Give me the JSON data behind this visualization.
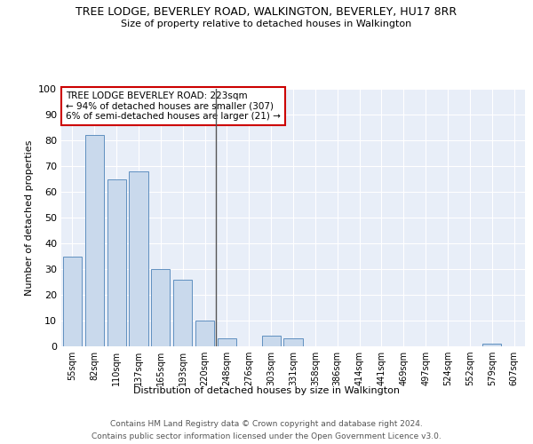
{
  "title": "TREE LODGE, BEVERLEY ROAD, WALKINGTON, BEVERLEY, HU17 8RR",
  "subtitle": "Size of property relative to detached houses in Walkington",
  "xlabel": "Distribution of detached houses by size in Walkington",
  "ylabel": "Number of detached properties",
  "categories": [
    "55sqm",
    "82sqm",
    "110sqm",
    "137sqm",
    "165sqm",
    "193sqm",
    "220sqm",
    "248sqm",
    "276sqm",
    "303sqm",
    "331sqm",
    "358sqm",
    "386sqm",
    "414sqm",
    "441sqm",
    "469sqm",
    "497sqm",
    "524sqm",
    "552sqm",
    "579sqm",
    "607sqm"
  ],
  "values": [
    35,
    82,
    65,
    68,
    30,
    26,
    10,
    3,
    0,
    4,
    3,
    0,
    0,
    0,
    0,
    0,
    0,
    0,
    0,
    1,
    0
  ],
  "bar_color": "#c9d9ec",
  "bar_edge_color": "#6090c0",
  "background_color": "#e8eef8",
  "grid_color": "#ffffff",
  "vline_x": 6.5,
  "vline_color": "#555555",
  "annotation_text": "TREE LODGE BEVERLEY ROAD: 223sqm\n← 94% of detached houses are smaller (307)\n6% of semi-detached houses are larger (21) →",
  "annotation_box_color": "#cc0000",
  "ylim": [
    0,
    100
  ],
  "footnote1": "Contains HM Land Registry data © Crown copyright and database right 2024.",
  "footnote2": "Contains public sector information licensed under the Open Government Licence v3.0."
}
